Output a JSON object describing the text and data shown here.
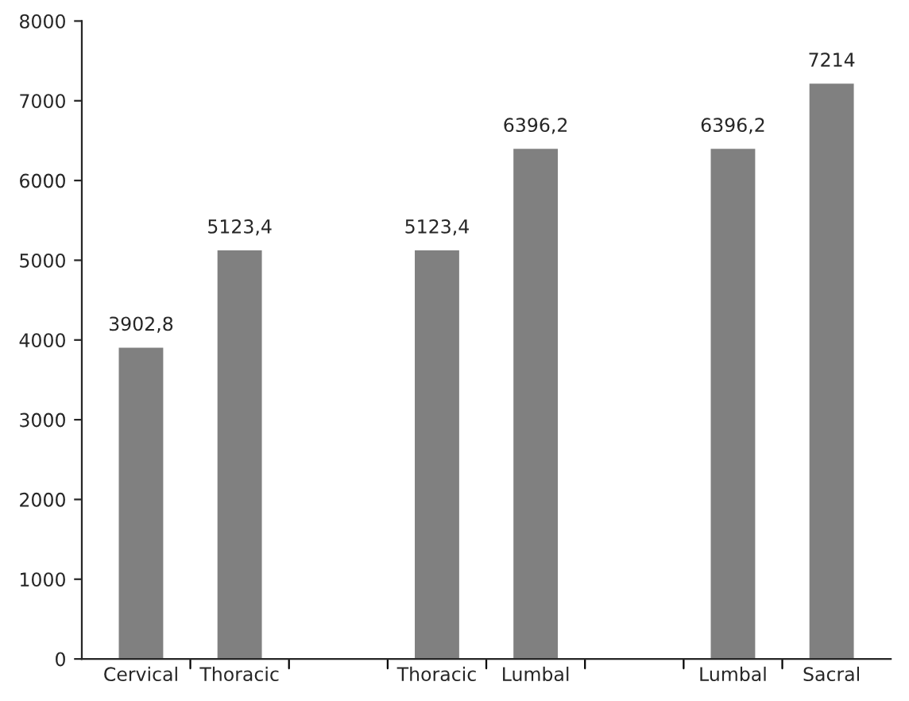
{
  "chart_data": {
    "type": "bar",
    "categories": [
      "Cervical",
      "Thoracic",
      null,
      "Thoracic",
      "Lumbal",
      null,
      "Lumbal",
      "Sacral"
    ],
    "values": [
      3902.8,
      5123.4,
      null,
      5123.4,
      6396.2,
      null,
      6396.2,
      7214
    ],
    "value_labels": [
      "3902,8",
      "5123,4",
      null,
      "5123,4",
      "6396,2",
      null,
      "6396,2",
      "7214"
    ],
    "color": "#808080",
    "ylim": [
      0,
      8000
    ],
    "yticks": [
      0,
      1000,
      2000,
      3000,
      4000,
      5000,
      6000,
      7000,
      8000
    ],
    "grid": false,
    "legend": false
  }
}
